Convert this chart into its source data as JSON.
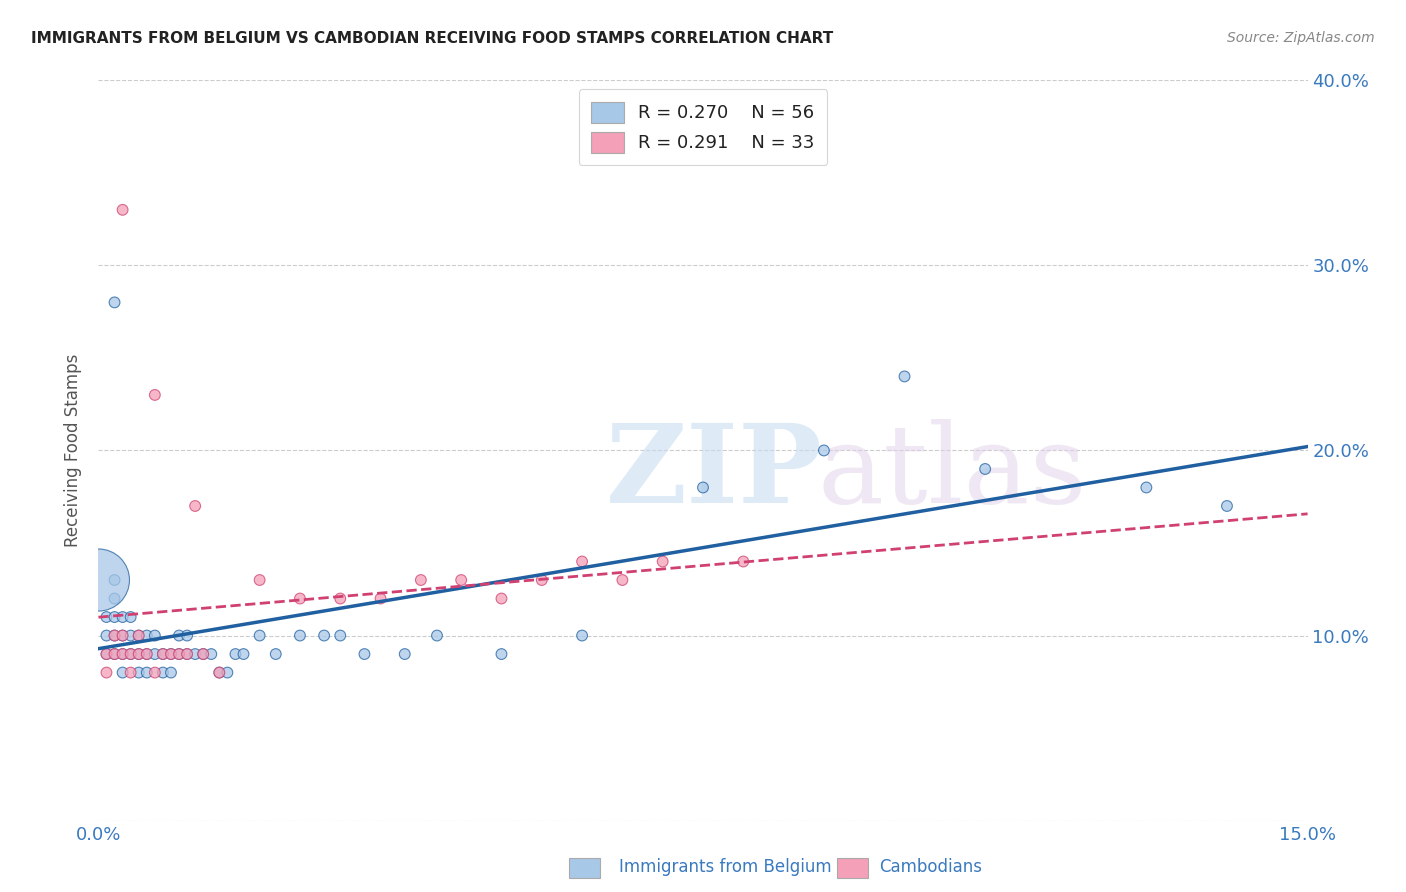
{
  "title": "IMMIGRANTS FROM BELGIUM VS CAMBODIAN RECEIVING FOOD STAMPS CORRELATION CHART",
  "source": "Source: ZipAtlas.com",
  "ylabel": "Receiving Food Stamps",
  "xlim": [
    0.0,
    0.15
  ],
  "ylim": [
    0.0,
    0.4
  ],
  "color_blue": "#a8c8e8",
  "color_pink": "#f4a0b8",
  "line_blue": "#2060a0",
  "line_pink": "#d04070",
  "belgium_x": [
    0.001,
    0.001,
    0.001,
    0.002,
    0.002,
    0.002,
    0.002,
    0.002,
    0.003,
    0.003,
    0.003,
    0.003,
    0.004,
    0.004,
    0.004,
    0.005,
    0.005,
    0.005,
    0.006,
    0.006,
    0.006,
    0.007,
    0.007,
    0.008,
    0.008,
    0.009,
    0.009,
    0.01,
    0.01,
    0.011,
    0.011,
    0.012,
    0.013,
    0.014,
    0.015,
    0.016,
    0.017,
    0.018,
    0.02,
    0.022,
    0.025,
    0.028,
    0.03,
    0.033,
    0.038,
    0.042,
    0.05,
    0.06,
    0.075,
    0.09,
    0.1,
    0.11,
    0.13,
    0.14,
    0.002,
    0.0
  ],
  "belgium_y": [
    0.09,
    0.1,
    0.11,
    0.09,
    0.1,
    0.11,
    0.12,
    0.13,
    0.08,
    0.09,
    0.1,
    0.11,
    0.09,
    0.1,
    0.11,
    0.08,
    0.09,
    0.1,
    0.08,
    0.09,
    0.1,
    0.09,
    0.1,
    0.08,
    0.09,
    0.08,
    0.09,
    0.09,
    0.1,
    0.09,
    0.1,
    0.09,
    0.09,
    0.09,
    0.08,
    0.08,
    0.09,
    0.09,
    0.1,
    0.09,
    0.1,
    0.1,
    0.1,
    0.09,
    0.09,
    0.1,
    0.09,
    0.1,
    0.18,
    0.2,
    0.24,
    0.19,
    0.18,
    0.17,
    0.28,
    0.13
  ],
  "belgium_sizes": [
    60,
    60,
    60,
    60,
    60,
    60,
    60,
    60,
    60,
    60,
    60,
    60,
    60,
    60,
    60,
    60,
    60,
    60,
    60,
    60,
    60,
    60,
    60,
    60,
    60,
    60,
    60,
    60,
    60,
    60,
    60,
    60,
    60,
    60,
    60,
    60,
    60,
    60,
    60,
    60,
    60,
    60,
    60,
    60,
    60,
    60,
    60,
    60,
    60,
    60,
    60,
    60,
    60,
    60,
    60,
    2000
  ],
  "cambodian_x": [
    0.001,
    0.001,
    0.002,
    0.002,
    0.003,
    0.003,
    0.004,
    0.004,
    0.005,
    0.005,
    0.006,
    0.007,
    0.008,
    0.009,
    0.01,
    0.011,
    0.013,
    0.015,
    0.02,
    0.025,
    0.03,
    0.035,
    0.04,
    0.045,
    0.05,
    0.055,
    0.06,
    0.065,
    0.07,
    0.08,
    0.003,
    0.007,
    0.012
  ],
  "cambodian_y": [
    0.08,
    0.09,
    0.09,
    0.1,
    0.09,
    0.1,
    0.08,
    0.09,
    0.09,
    0.1,
    0.09,
    0.08,
    0.09,
    0.09,
    0.09,
    0.09,
    0.09,
    0.08,
    0.13,
    0.12,
    0.12,
    0.12,
    0.13,
    0.13,
    0.12,
    0.13,
    0.14,
    0.13,
    0.14,
    0.14,
    0.33,
    0.23,
    0.17
  ],
  "cambodian_sizes": [
    60,
    60,
    60,
    60,
    60,
    60,
    60,
    60,
    60,
    60,
    60,
    60,
    60,
    60,
    60,
    60,
    60,
    60,
    60,
    60,
    60,
    60,
    60,
    60,
    60,
    60,
    60,
    60,
    60,
    60,
    60,
    60,
    60
  ]
}
